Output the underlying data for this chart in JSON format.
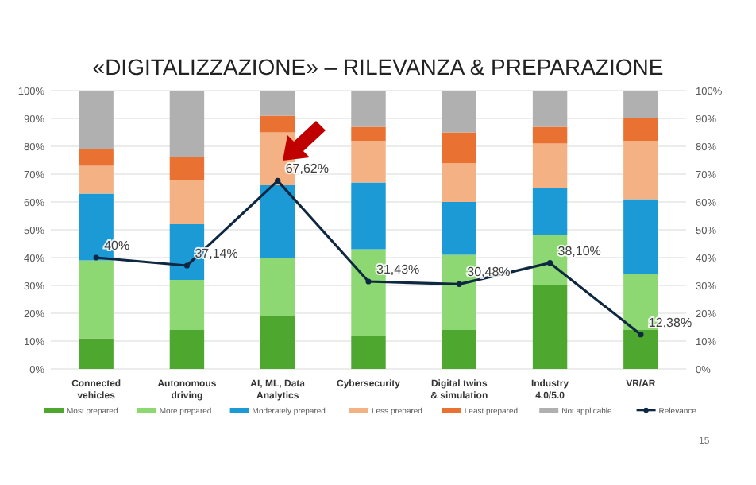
{
  "chart_data": {
    "type": "bar",
    "title": "«DIGITALIZZAZIONE» – RILEVANZA & PREPARAZIONE",
    "categories": [
      "Connected vehicles",
      "Autonomous driving",
      "AI, ML, Data Analytics",
      "Cybersecurity",
      "Digital twins & simulation",
      "Industry 4.0/5.0",
      "VR/AR"
    ],
    "stacked": true,
    "series": [
      {
        "name": "Most prepared",
        "color": "#4ea72e",
        "values": [
          11,
          14,
          19,
          12,
          14,
          30,
          14
        ]
      },
      {
        "name": "More prepared",
        "color": "#8ed873",
        "values": [
          28,
          18,
          21,
          31,
          27,
          18,
          20
        ]
      },
      {
        "name": "Moderately prepared",
        "color": "#1b9ad6",
        "values": [
          24,
          20,
          26,
          24,
          19,
          17,
          27
        ]
      },
      {
        "name": "Less prepared",
        "color": "#f4b183",
        "values": [
          10,
          16,
          19,
          15,
          14,
          16,
          21
        ]
      },
      {
        "name": "Least prepared",
        "color": "#e97132",
        "values": [
          6,
          8,
          6,
          5,
          11,
          6,
          8
        ]
      },
      {
        "name": "Not applicable",
        "color": "#b0b0b0",
        "values": [
          21,
          24,
          9,
          13,
          15,
          13,
          10
        ]
      },
      {
        "name": "Relevance",
        "type": "line",
        "color": "#0e2841",
        "marker": "circle",
        "values": [
          40,
          37.14,
          67.62,
          31.43,
          30.48,
          38.1,
          12.38
        ],
        "value_labels": [
          "40%",
          "37,14%",
          "67,62%",
          "31,43%",
          "30,48%",
          "38,10%",
          "12,38%"
        ]
      }
    ],
    "ylim": [
      0,
      100
    ],
    "yticks": [
      {
        "value": 0,
        "label": "0%"
      },
      {
        "value": 10,
        "label": "10%"
      },
      {
        "value": 20,
        "label": "20%"
      },
      {
        "value": 30,
        "label": "30%"
      },
      {
        "value": 40,
        "label": "40%"
      },
      {
        "value": 50,
        "label": "50%"
      },
      {
        "value": 60,
        "label": "60%"
      },
      {
        "value": 70,
        "label": "70%"
      },
      {
        "value": 80,
        "label": "80%"
      },
      {
        "value": 90,
        "label": "90%"
      },
      {
        "value": 100,
        "label": "100%"
      }
    ],
    "y2lim": [
      0,
      100
    ],
    "y2ticks": [
      {
        "value": 0,
        "label": "0%"
      },
      {
        "value": 10,
        "label": "10%"
      },
      {
        "value": 20,
        "label": "20%"
      },
      {
        "value": 30,
        "label": "30%"
      },
      {
        "value": 40,
        "label": "40%"
      },
      {
        "value": 50,
        "label": "50%"
      },
      {
        "value": 60,
        "label": "60%"
      },
      {
        "value": 70,
        "label": "70%"
      },
      {
        "value": 80,
        "label": "80%"
      },
      {
        "value": 90,
        "label": "90%"
      },
      {
        "value": 100,
        "label": "100%"
      }
    ],
    "grid": "y",
    "legend": "bottom",
    "annotations": [
      "15"
    ]
  }
}
